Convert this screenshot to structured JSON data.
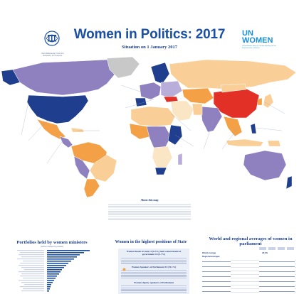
{
  "header": {
    "title": "Women in Politics: 2017",
    "subtitle": "Situation on 1 January 2017",
    "ipu_logo_caption": "Inter-Parliamentary Union For democracy. For everyone.",
    "un_logo_text": "UN WOMEN",
    "un_logo_caption": "United Nations Entity for Gender Equality and the Empowerment of Women"
  },
  "map": {
    "about_label": "About this map",
    "colors": {
      "ocean": "#ffffff",
      "purple": "#8f80bf",
      "navy": "#1f3f8e",
      "orange": "#f3a046",
      "peach": "#f9cf97",
      "pale": "#fae6c4",
      "red": "#e23026",
      "gray": "#c8c8c8",
      "lavender": "#b9aed9"
    }
  },
  "sections": {
    "portfolios": {
      "title": "Portfolios held by women ministers",
      "subtitle": "(women ministers by portfolio)"
    },
    "highest": {
      "title": "Women in the highest positions of State",
      "line1": "Women heads of state 11 (6.3%) and women heads of government 10 (5.7%)",
      "line2": "Women Speakers of Parliament 53 (19.1%)",
      "line3": "Women deputy speakers of Parliament"
    },
    "averages": {
      "title": "World and regional averages of women in parliament",
      "rows": [
        {
          "name": "World average",
          "val": "23.3%"
        },
        {
          "name": "Regional averages",
          "val": ""
        }
      ]
    }
  }
}
